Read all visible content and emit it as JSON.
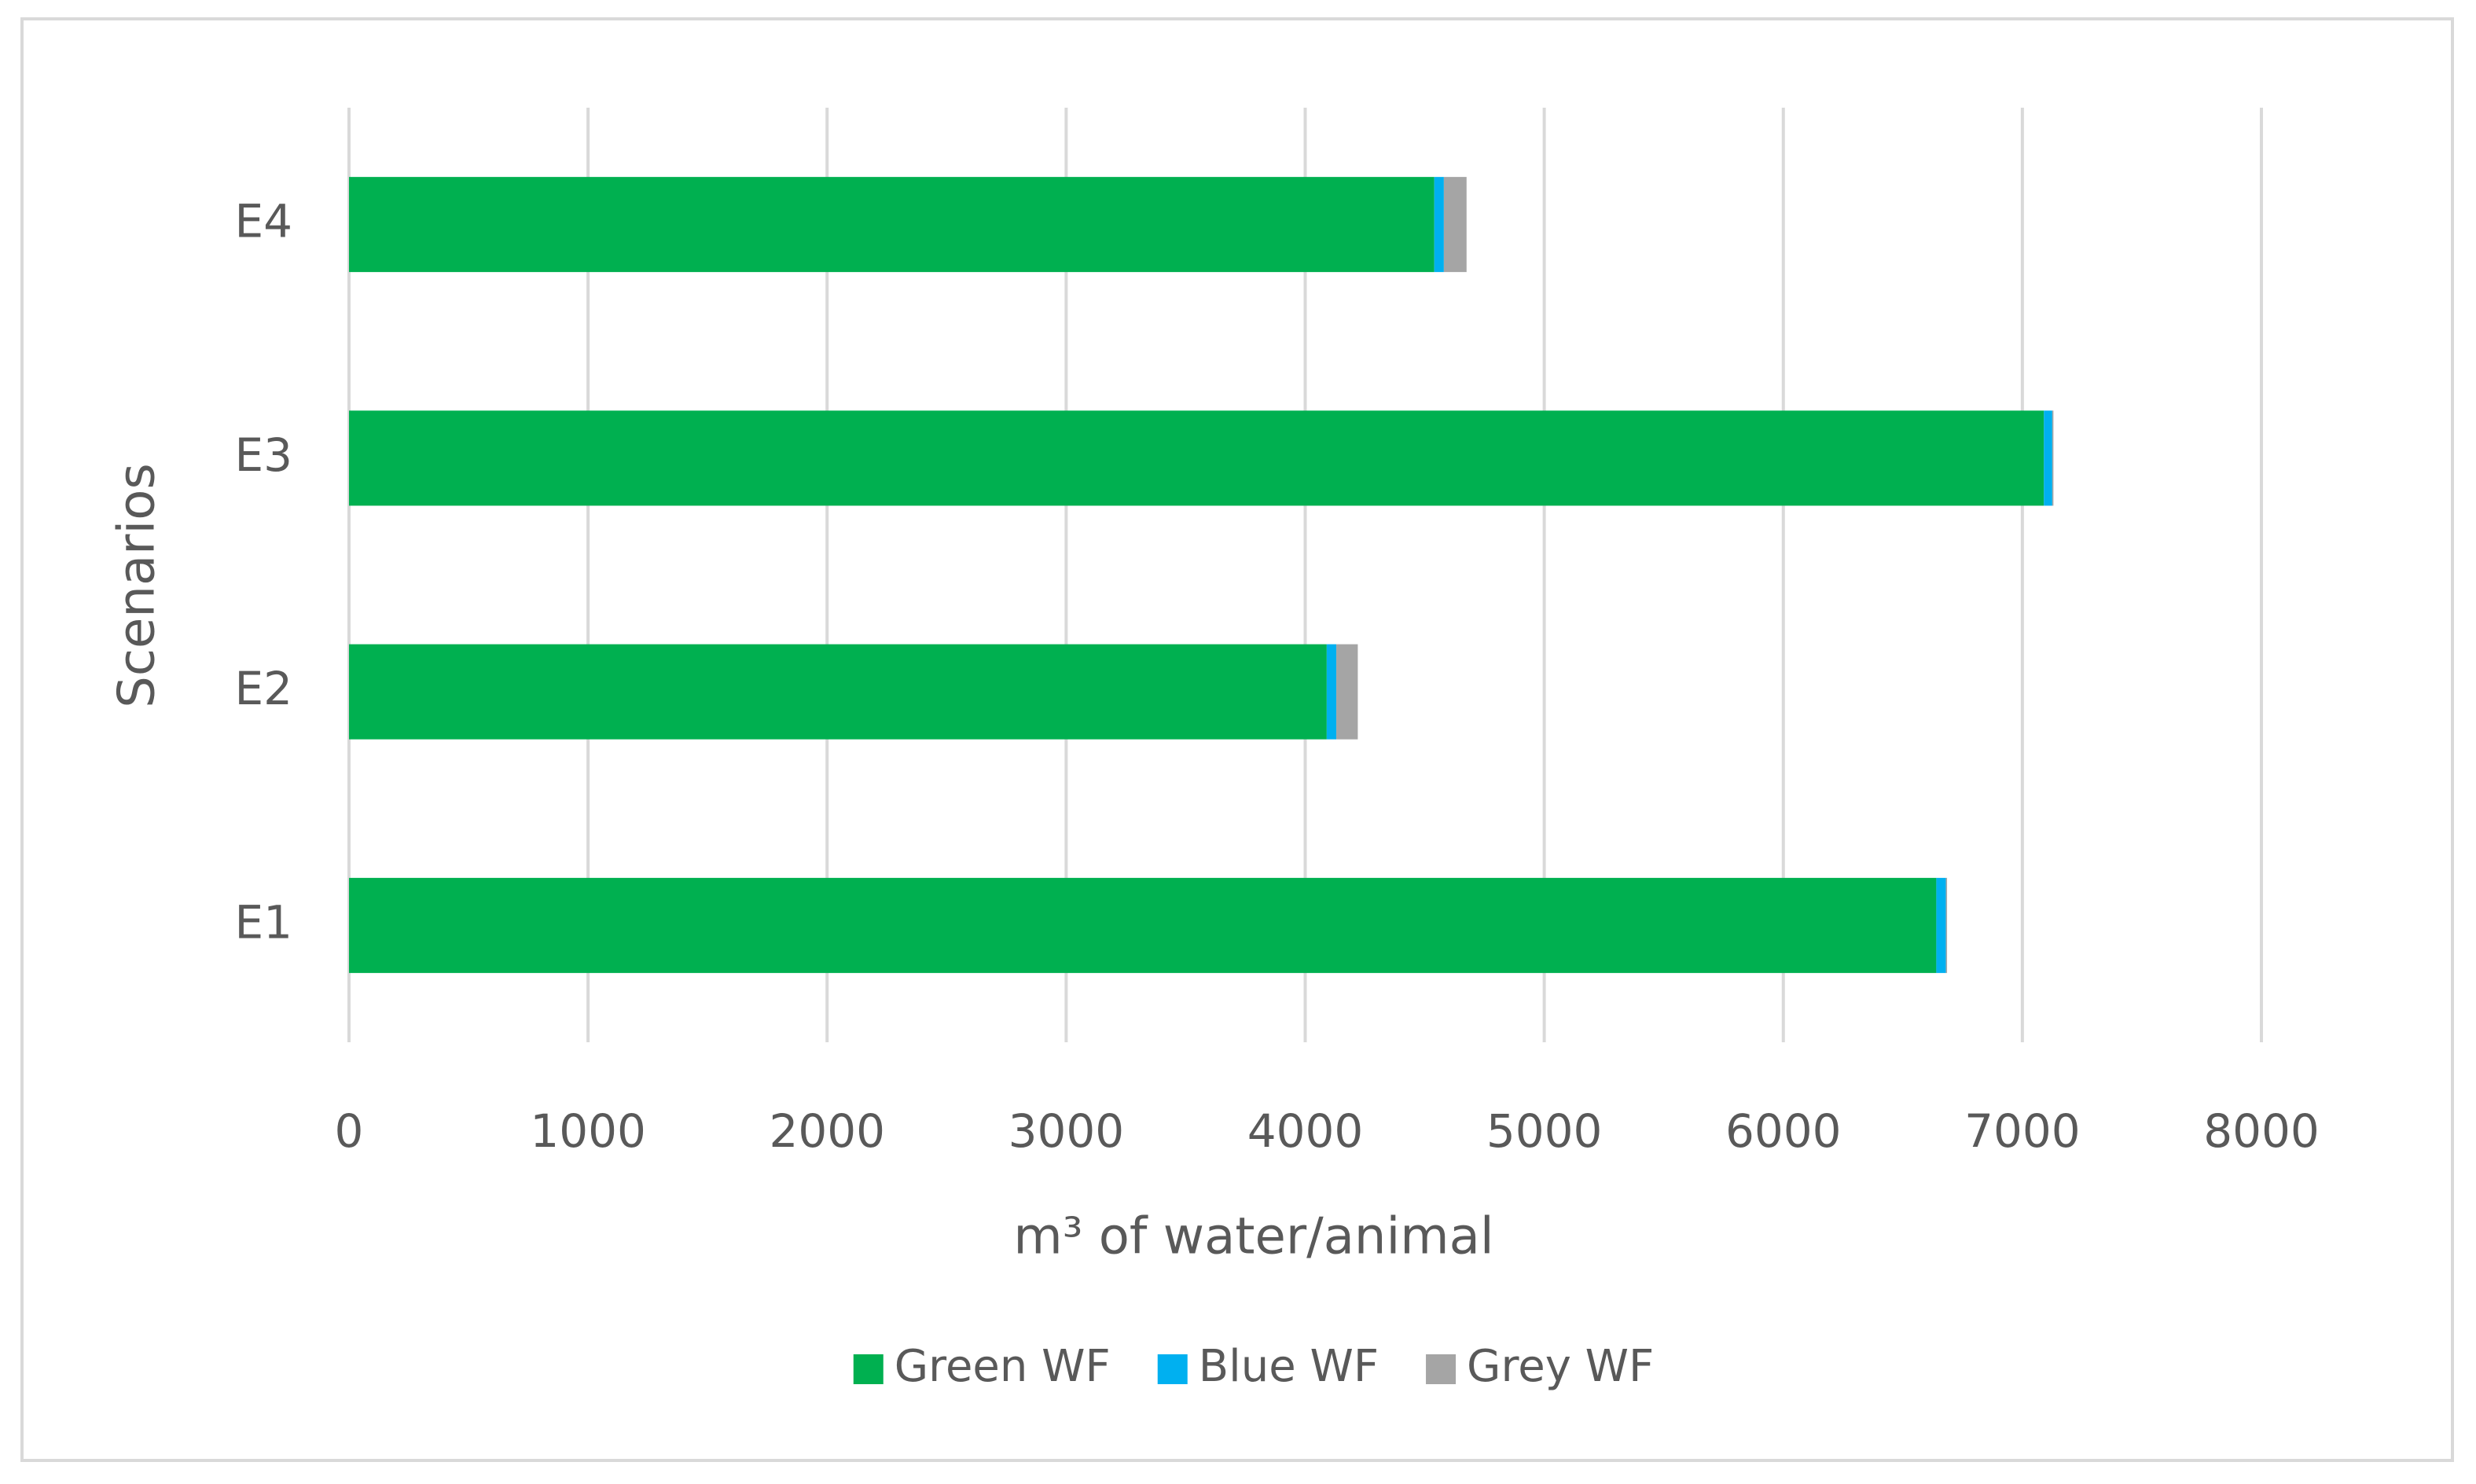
{
  "chart_data": {
    "type": "bar",
    "orientation": "horizontal",
    "stacked": true,
    "xlabel": "m³ of water/animal",
    "ylabel": "Scenarios",
    "categories": [
      "E1",
      "E2",
      "E3",
      "E4"
    ],
    "series": [
      {
        "name": "Green WF",
        "color": "#00b050",
        "values": [
          6640,
          4090,
          7090,
          4540
        ]
      },
      {
        "name": "Blue WF",
        "color": "#00b0f0",
        "values": [
          40,
          40,
          35,
          40
        ]
      },
      {
        "name": "Grey WF",
        "color": "#a5a5a5",
        "values": [
          5,
          90,
          5,
          95
        ]
      }
    ],
    "xlim": [
      0,
      8000
    ],
    "xticks": [
      0,
      1000,
      2000,
      3000,
      4000,
      5000,
      6000,
      7000,
      8000
    ],
    "grid": true,
    "legend": "bottom"
  }
}
